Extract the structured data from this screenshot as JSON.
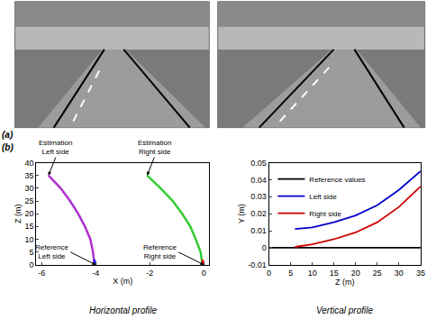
{
  "figure": {
    "panel_labels": [
      "(a)",
      "(b)"
    ]
  },
  "chart_data": [
    {
      "type": "line",
      "title": "Horizontal profile",
      "x_label": "X (m)",
      "y_label": "Z (m)",
      "xlim": [
        -6.2,
        0.2
      ],
      "xticks": [
        -6,
        -4,
        -2,
        0
      ],
      "ylim": [
        0,
        40
      ],
      "yticks": [
        0,
        5,
        10,
        15,
        20,
        25,
        30,
        35,
        40
      ],
      "grid": false,
      "series": [
        {
          "annotation": "Estimation\nLeft side",
          "color": "#b030d0",
          "x": [
            -4.05,
            -4.1,
            -4.2,
            -4.4,
            -4.65,
            -4.95,
            -5.3,
            -5.75
          ],
          "values": [
            0,
            5,
            10,
            15,
            20,
            25,
            30,
            35
          ]
        },
        {
          "annotation": "Reference\nLeft side",
          "color": "#1f1fff",
          "x": [
            -4.0,
            -4.02,
            -4.05
          ],
          "values": [
            0,
            1,
            2
          ]
        },
        {
          "annotation": "Estimation\nRight side",
          "color": "#33cc33",
          "x": [
            -0.05,
            -0.12,
            -0.3,
            -0.5,
            -0.8,
            -1.15,
            -1.6,
            -2.1
          ],
          "values": [
            0,
            5,
            10,
            15,
            20,
            25,
            30,
            35
          ]
        },
        {
          "annotation": "Reference\nRight side",
          "color": "#ff0000",
          "x": [
            0,
            -0.02,
            -0.05
          ],
          "values": [
            0,
            1,
            2
          ]
        }
      ]
    },
    {
      "type": "line",
      "title": "Vertical profile",
      "x_label": "Z (m)",
      "y_label": "Y (m)",
      "xlim": [
        0,
        35
      ],
      "xticks": [
        0,
        5,
        10,
        15,
        20,
        25,
        30,
        35
      ],
      "ylim": [
        -0.01,
        0.05
      ],
      "yticks": [
        -0.01,
        0,
        0.01,
        0.02,
        0.03,
        0.04,
        0.05
      ],
      "grid": false,
      "legend": "upper left",
      "series": [
        {
          "name": "Reference values",
          "color": "#000000",
          "x": [
            0,
            35
          ],
          "values": [
            0,
            0
          ]
        },
        {
          "name": "Left side",
          "color": "#0000cc",
          "x": [
            6,
            10,
            15,
            20,
            25,
            30,
            35
          ],
          "values": [
            0.011,
            0.012,
            0.015,
            0.019,
            0.025,
            0.034,
            0.045
          ]
        },
        {
          "name": "Right side",
          "color": "#cc0000",
          "x": [
            6,
            10,
            15,
            20,
            25,
            30,
            35
          ],
          "values": [
            0.0005,
            0.002,
            0.005,
            0.009,
            0.015,
            0.024,
            0.036
          ]
        }
      ]
    }
  ]
}
